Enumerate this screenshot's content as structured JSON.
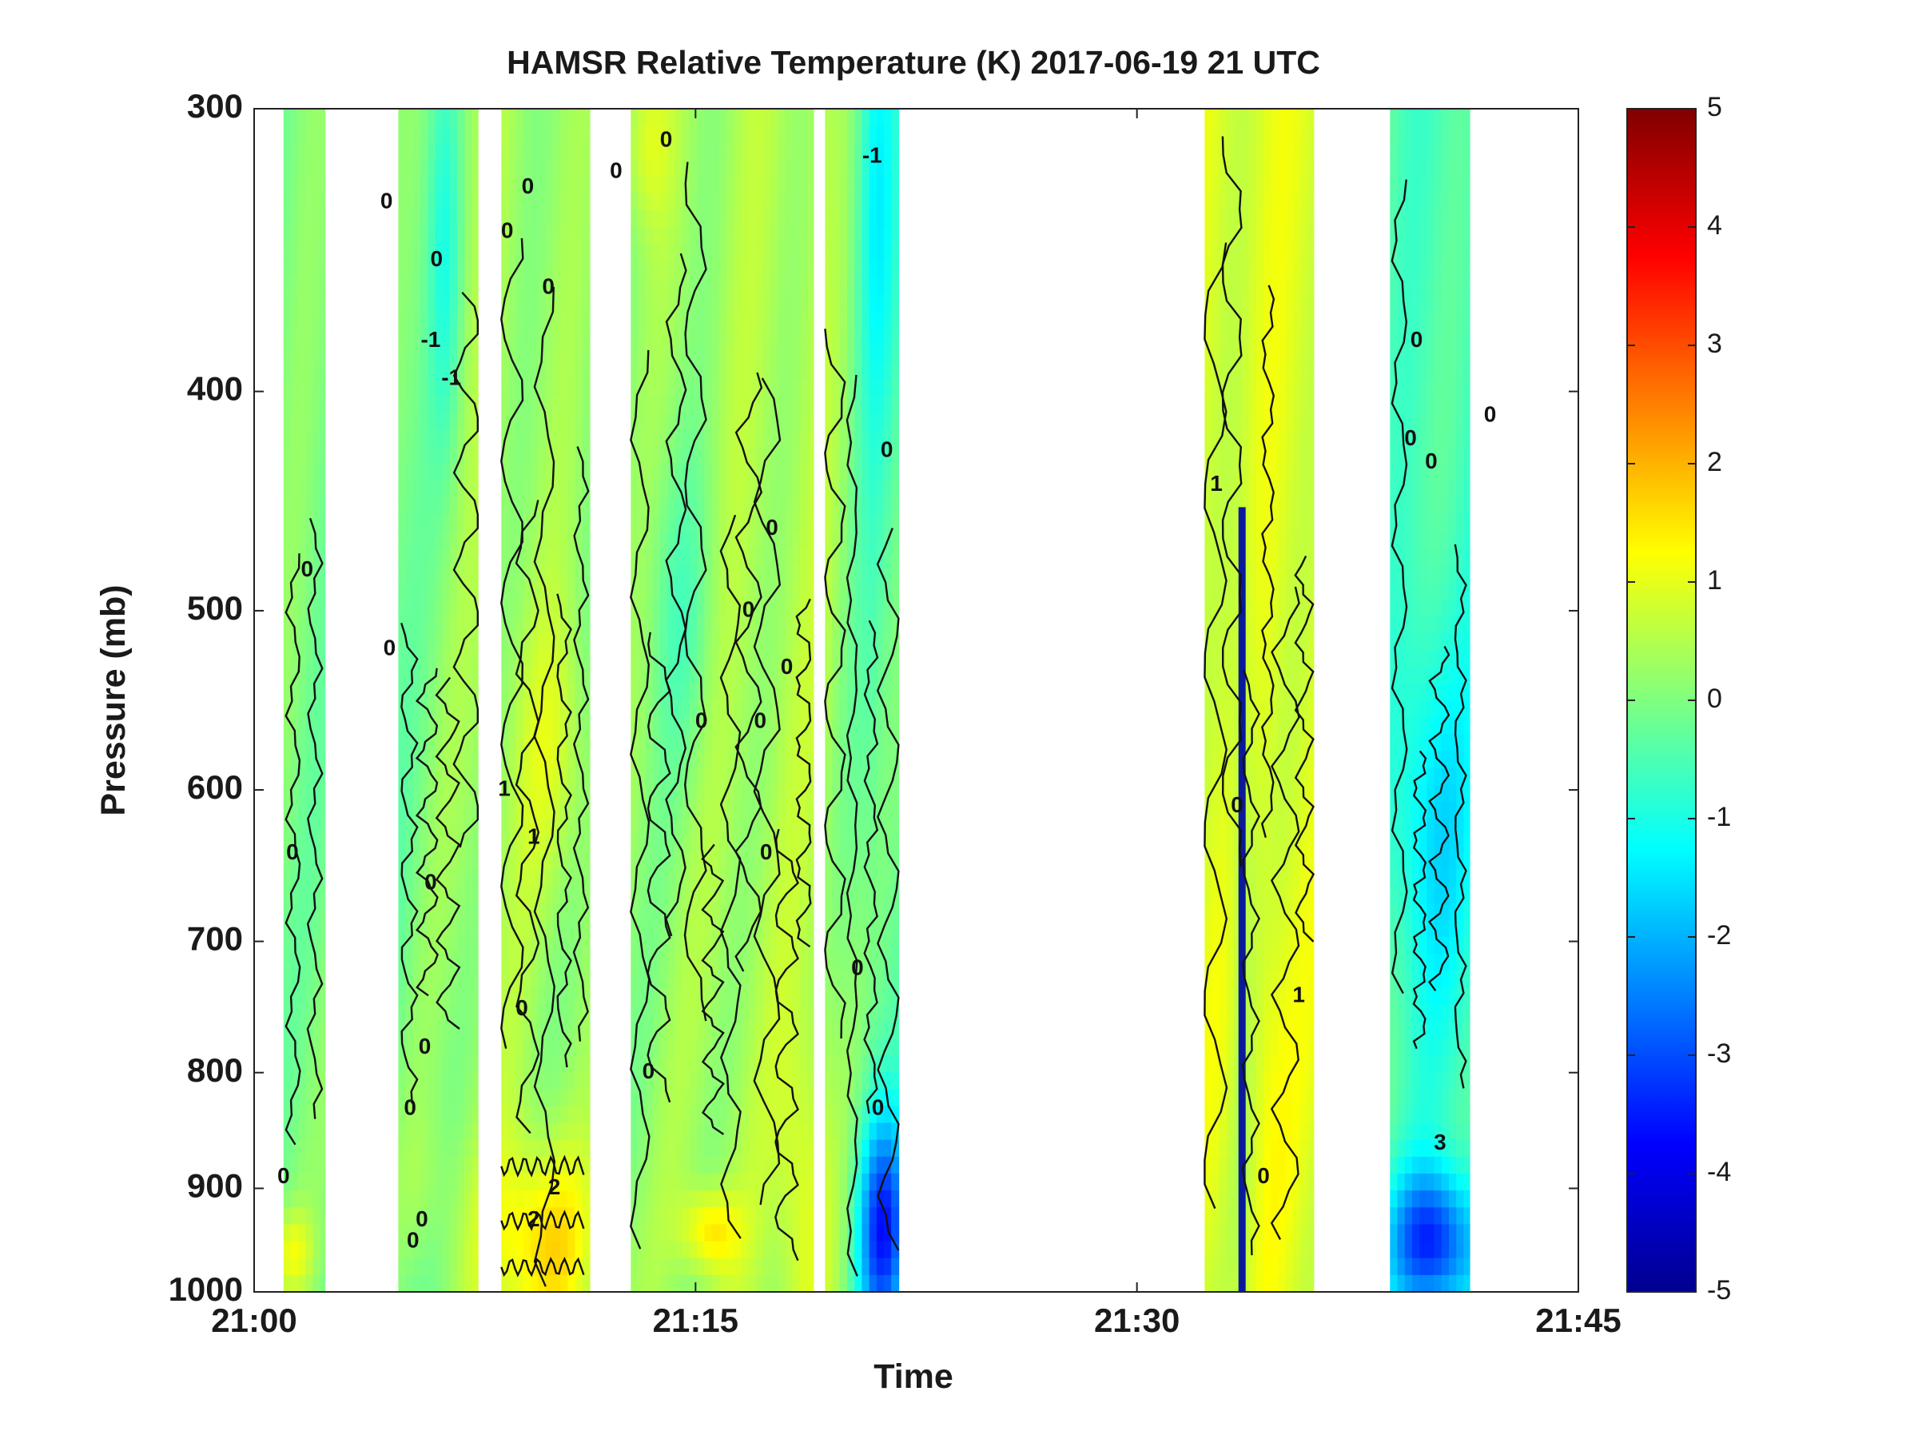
{
  "chart_data": {
    "type": "heatmap",
    "title": "HAMSR  Relative Temperature (K) 2017-06-19 21 UTC",
    "xlabel": "Time",
    "ylabel": "Pressure (mb)",
    "x_ticks": [
      "21:00",
      "21:15",
      "21:30",
      "21:45"
    ],
    "x_range_minutes": [
      0,
      45
    ],
    "y_ticks": [
      300,
      400,
      500,
      600,
      700,
      800,
      900,
      1000
    ],
    "y_range": [
      300,
      1000
    ],
    "y_scale": "log",
    "y_reversed": true,
    "colorbar": {
      "colormap": "jet",
      "range": [
        -5,
        5
      ],
      "ticks": [
        5,
        4,
        3,
        2,
        1,
        0,
        -1,
        -2,
        -3,
        -4,
        -5
      ]
    },
    "grid": false,
    "contour_labels": [
      {
        "t": 1.0,
        "p": 890,
        "text": "0"
      },
      {
        "t": 1.3,
        "p": 640,
        "text": "0"
      },
      {
        "t": 1.8,
        "p": 480,
        "text": "0"
      },
      {
        "t": 4.5,
        "p": 330,
        "text": "0"
      },
      {
        "t": 4.6,
        "p": 520,
        "text": "0"
      },
      {
        "t": 6.2,
        "p": 350,
        "text": "0"
      },
      {
        "t": 6.0,
        "p": 380,
        "text": "-1"
      },
      {
        "t": 6.7,
        "p": 395,
        "text": "-1"
      },
      {
        "t": 5.3,
        "p": 830,
        "text": "0"
      },
      {
        "t": 6.0,
        "p": 660,
        "text": "0"
      },
      {
        "t": 5.8,
        "p": 780,
        "text": "0"
      },
      {
        "t": 5.4,
        "p": 950,
        "text": "0"
      },
      {
        "t": 5.7,
        "p": 930,
        "text": "0"
      },
      {
        "t": 8.6,
        "p": 340,
        "text": "0"
      },
      {
        "t": 9.3,
        "p": 325,
        "text": "0"
      },
      {
        "t": 8.5,
        "p": 600,
        "text": "1"
      },
      {
        "t": 9.5,
        "p": 630,
        "text": "1"
      },
      {
        "t": 9.1,
        "p": 750,
        "text": "0"
      },
      {
        "t": 10.0,
        "p": 360,
        "text": "0"
      },
      {
        "t": 10.2,
        "p": 900,
        "text": "2"
      },
      {
        "t": 9.5,
        "p": 930,
        "text": "2"
      },
      {
        "t": 12.3,
        "p": 320,
        "text": "0"
      },
      {
        "t": 14.0,
        "p": 310,
        "text": "0"
      },
      {
        "t": 13.4,
        "p": 800,
        "text": "0"
      },
      {
        "t": 15.2,
        "p": 560,
        "text": "0"
      },
      {
        "t": 16.8,
        "p": 500,
        "text": "0"
      },
      {
        "t": 17.2,
        "p": 560,
        "text": "0"
      },
      {
        "t": 17.6,
        "p": 460,
        "text": "0"
      },
      {
        "t": 18.1,
        "p": 530,
        "text": "0"
      },
      {
        "t": 17.4,
        "p": 640,
        "text": "0"
      },
      {
        "t": 20.5,
        "p": 720,
        "text": "0"
      },
      {
        "t": 21.2,
        "p": 830,
        "text": "0"
      },
      {
        "t": 21.5,
        "p": 425,
        "text": "0"
      },
      {
        "t": 21.0,
        "p": 315,
        "text": "-1"
      },
      {
        "t": 32.7,
        "p": 440,
        "text": "1"
      },
      {
        "t": 33.4,
        "p": 610,
        "text": "0"
      },
      {
        "t": 34.3,
        "p": 890,
        "text": "0"
      },
      {
        "t": 35.5,
        "p": 740,
        "text": "1"
      },
      {
        "t": 39.5,
        "p": 380,
        "text": "0"
      },
      {
        "t": 39.3,
        "p": 420,
        "text": "0"
      },
      {
        "t": 40.0,
        "p": 430,
        "text": "0"
      },
      {
        "t": 42.0,
        "p": 410,
        "text": "0"
      },
      {
        "t": 40.3,
        "p": 860,
        "text": "3"
      }
    ]
  }
}
